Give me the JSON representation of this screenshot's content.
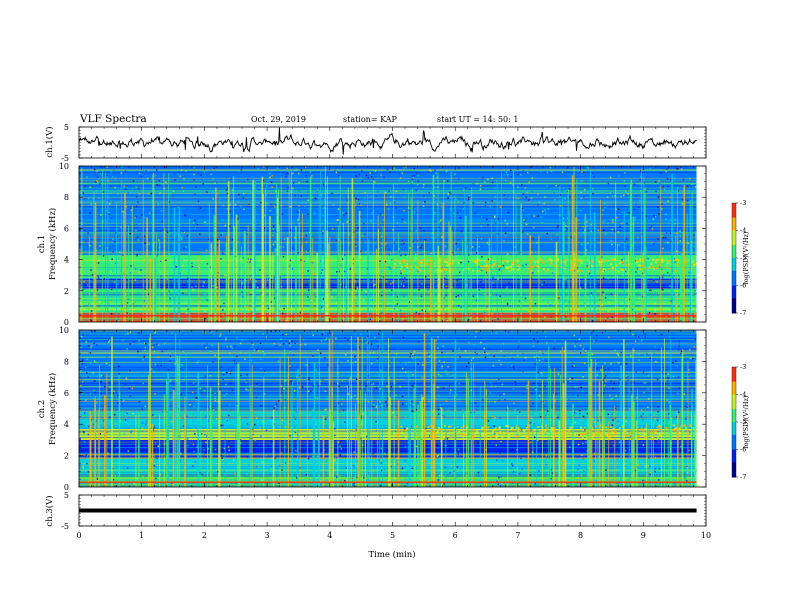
{
  "header": {
    "title": "VLF Spectra",
    "date": "Oct. 29, 2019",
    "station": "station= KAP",
    "start": "start  UT =   14: 50: 1"
  },
  "colors": {
    "spectrogram_scale": [
      "#00008c",
      "#0022ee",
      "#0077ff",
      "#00d0e0",
      "#3af070",
      "#c8f028",
      "#ffb000",
      "#ff3010",
      "#ffffff"
    ]
  },
  "chart_data": [
    {
      "type": "line",
      "name": "ch1-waveform",
      "ylabel": "ch.1(V)",
      "ylim": [
        -5,
        5
      ],
      "yticks": [
        "5",
        "-5"
      ],
      "xlim": [
        0,
        10
      ],
      "description_level": "noisy waveform, amplitude about -2.5 to +2.5 V"
    },
    {
      "type": "heatmap",
      "name": "ch1-spectrogram",
      "ylabel": "ch.1\nFrequency (kHz)",
      "ylabel_line1": "ch.1",
      "ylabel_line2": "Frequency (kHz)",
      "ylim": [
        0,
        10
      ],
      "yticks": [
        "0",
        "2",
        "4",
        "6",
        "8",
        "10"
      ],
      "xlim": [
        0,
        9.85
      ],
      "colorbar": {
        "label": "log(PSD)(V²/Hz)",
        "range": [
          -7,
          -3
        ],
        "ticks": [
          "-3",
          "-4",
          "-5",
          "-6",
          "-7"
        ]
      },
      "bands_khz": [
        {
          "from": 0,
          "to": 0.6,
          "level": -3.5
        },
        {
          "from": 0.6,
          "to": 2.1,
          "level": -4.6
        },
        {
          "from": 2.1,
          "to": 2.8,
          "level": -6.2
        },
        {
          "from": 2.8,
          "to": 4.3,
          "level": -5.0
        },
        {
          "from": 4.3,
          "to": 10,
          "level": -5.9
        }
      ]
    },
    {
      "type": "heatmap",
      "name": "ch2-spectrogram",
      "ylabel_line1": "ch.2",
      "ylabel_line2": "Frequency (kHz)",
      "ylim": [
        0,
        10
      ],
      "yticks": [
        "0",
        "2",
        "4",
        "6",
        "8",
        "10"
      ],
      "xlim": [
        0,
        9.85
      ],
      "colorbar": {
        "label": "log(PSD)(V²/Hz)",
        "range": [
          -7,
          -3
        ],
        "ticks": [
          "-3",
          "-4",
          "-5",
          "-6",
          "-7"
        ]
      },
      "bands_khz": [
        {
          "from": 0,
          "to": 0.8,
          "level": -4.8
        },
        {
          "from": 0.8,
          "to": 1.8,
          "level": -5.4
        },
        {
          "from": 1.8,
          "to": 3.0,
          "level": -6.3
        },
        {
          "from": 3.0,
          "to": 3.7,
          "level": -4.3
        },
        {
          "from": 3.7,
          "to": 4.8,
          "level": -5.3
        },
        {
          "from": 4.8,
          "to": 10,
          "level": -6.0
        }
      ]
    },
    {
      "type": "line",
      "name": "ch3-waveform",
      "ylabel": "ch.3(V)",
      "ylim": [
        -5,
        5
      ],
      "yticks": [
        "5",
        "-5"
      ],
      "xlim": [
        0,
        10
      ],
      "flat_value": 0,
      "xlabel": "Time  (min)",
      "xticks": [
        "0",
        "1",
        "2",
        "3",
        "4",
        "5",
        "6",
        "7",
        "8",
        "9",
        "10"
      ]
    }
  ]
}
